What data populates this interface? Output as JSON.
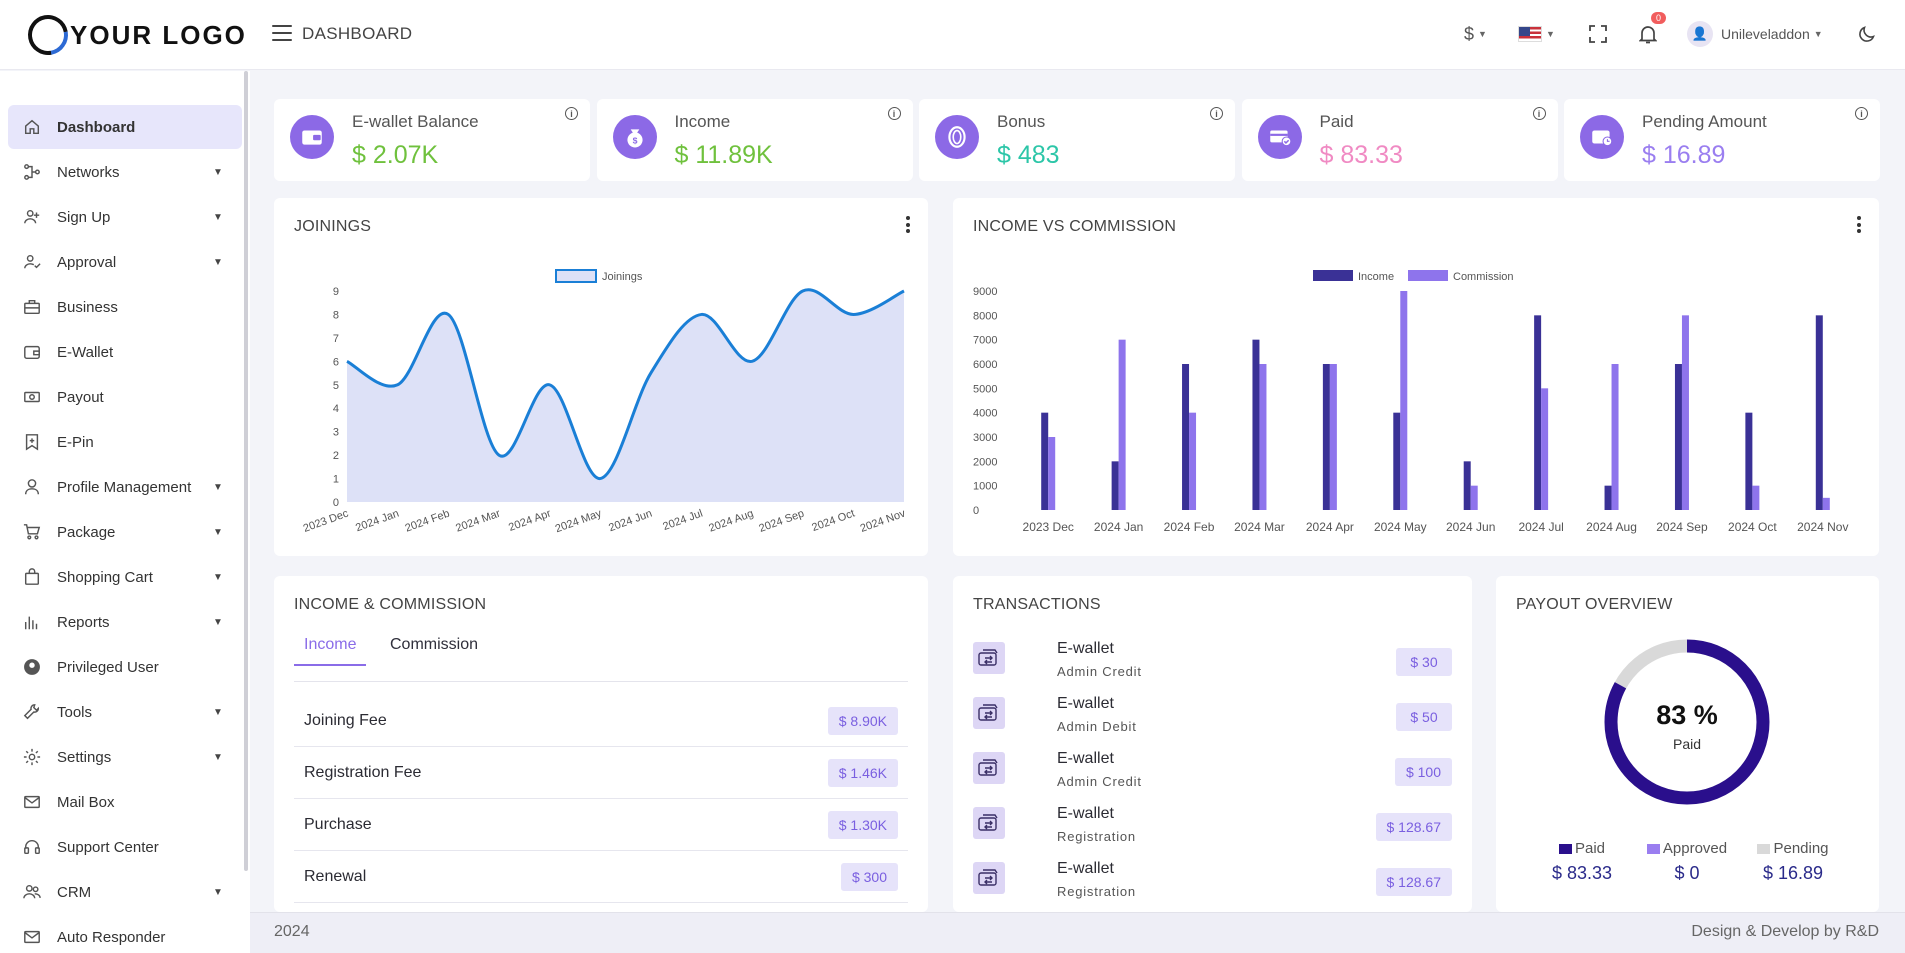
{
  "header": {
    "logo_text": "YOUR LOGO",
    "page_title": "DASHBOARD",
    "currency_symbol": "$",
    "notification_count": "0",
    "username": "Unileveladdon"
  },
  "sidebar": {
    "items": [
      {
        "label": "Dashboard",
        "icon": "home-icon",
        "active": true,
        "expandable": false
      },
      {
        "label": "Networks",
        "icon": "network-icon",
        "expandable": true
      },
      {
        "label": "Sign Up",
        "icon": "user-plus-icon",
        "expandable": true
      },
      {
        "label": "Approval",
        "icon": "user-check-icon",
        "expandable": true
      },
      {
        "label": "Business",
        "icon": "briefcase-icon",
        "expandable": false
      },
      {
        "label": "E-Wallet",
        "icon": "wallet-icon",
        "expandable": false
      },
      {
        "label": "Payout",
        "icon": "cash-icon",
        "expandable": false
      },
      {
        "label": "E-Pin",
        "icon": "bookmark-icon",
        "expandable": false
      },
      {
        "label": "Profile Management",
        "icon": "user-icon",
        "expandable": true
      },
      {
        "label": "Package",
        "icon": "cart-icon",
        "expandable": true
      },
      {
        "label": "Shopping Cart",
        "icon": "bag-icon",
        "expandable": true
      },
      {
        "label": "Reports",
        "icon": "bar-chart-icon",
        "expandable": true
      },
      {
        "label": "Privileged User",
        "icon": "user-circle-icon",
        "expandable": false
      },
      {
        "label": "Tools",
        "icon": "wrench-icon",
        "expandable": true
      },
      {
        "label": "Settings",
        "icon": "gear-icon",
        "expandable": true
      },
      {
        "label": "Mail Box",
        "icon": "mail-icon",
        "expandable": false
      },
      {
        "label": "Support Center",
        "icon": "headset-icon",
        "expandable": false
      },
      {
        "label": "CRM",
        "icon": "users-icon",
        "expandable": true
      },
      {
        "label": "Auto Responder",
        "icon": "mail-icon",
        "expandable": false
      }
    ]
  },
  "stats": [
    {
      "title": "E-wallet Balance",
      "value": "$ 2.07K",
      "color": "#6fc13d",
      "icon": "wallet-icon"
    },
    {
      "title": "Income",
      "value": "$ 11.89K",
      "color": "#6fc13d",
      "icon": "money-bag-icon"
    },
    {
      "title": "Bonus",
      "value": "$ 483",
      "color": "#2cc6a8",
      "icon": "coin-icon"
    },
    {
      "title": "Paid",
      "value": "$ 83.33",
      "color": "#f08ac3",
      "icon": "card-check-icon"
    },
    {
      "title": "Pending Amount",
      "value": "$ 16.89",
      "color": "#9a7ef0",
      "icon": "wallet-clock-icon"
    }
  ],
  "joinings": {
    "title": "JOININGS"
  },
  "income_vs_commission": {
    "title": "INCOME VS COMMISSION"
  },
  "chart_data": [
    {
      "type": "area",
      "legend": [
        "Joinings"
      ],
      "categories": [
        "2023 Dec",
        "2024 Jan",
        "2024 Feb",
        "2024 Mar",
        "2024 Apr",
        "2024 May",
        "2024 Jun",
        "2024 Jul",
        "2024 Aug",
        "2024 Sep",
        "2024 Oct",
        "2024 Nov"
      ],
      "series": [
        {
          "name": "Joinings",
          "values": [
            6,
            5,
            8,
            2,
            5,
            1,
            5.5,
            8,
            6,
            9,
            8,
            9
          ]
        }
      ],
      "yticks": [
        "0",
        "1",
        "2",
        "3",
        "4",
        "5",
        "6",
        "7",
        "8",
        "9"
      ],
      "ylim": [
        0,
        9
      ],
      "colors": {
        "line": "#1a7fd6",
        "fill": "#dde1f7"
      }
    },
    {
      "type": "bar",
      "legend": [
        "Income",
        "Commission"
      ],
      "categories": [
        "2023 Dec",
        "2024 Jan",
        "2024 Feb",
        "2024 Mar",
        "2024 Apr",
        "2024 May",
        "2024 Jun",
        "2024 Jul",
        "2024 Aug",
        "2024 Sep",
        "2024 Oct",
        "2024 Nov"
      ],
      "series": [
        {
          "name": "Income",
          "values": [
            4000,
            2000,
            6000,
            7000,
            6000,
            4000,
            2000,
            8000,
            1000,
            6000,
            4000,
            8000
          ]
        },
        {
          "name": "Commission",
          "values": [
            3000,
            7000,
            4000,
            6000,
            6000,
            9000,
            1000,
            5000,
            6000,
            8000,
            1000,
            500
          ]
        }
      ],
      "yticks": [
        "0",
        "1000",
        "2000",
        "3000",
        "4000",
        "5000",
        "6000",
        "7000",
        "8000",
        "9000"
      ],
      "ylim": [
        0,
        9000
      ],
      "colors": {
        "Income": "#3a3196",
        "Commission": "#8e74ec"
      }
    }
  ],
  "income_commission": {
    "title": "INCOME & COMMISSION",
    "tabs": [
      "Income",
      "Commission"
    ],
    "rows": [
      {
        "label": "Joining Fee",
        "amount": "$ 8.90K"
      },
      {
        "label": "Registration Fee",
        "amount": "$ 1.46K"
      },
      {
        "label": "Purchase",
        "amount": "$ 1.30K"
      },
      {
        "label": "Renewal",
        "amount": "$ 300"
      }
    ]
  },
  "transactions": {
    "title": "TRANSACTIONS",
    "rows": [
      {
        "name": "E-wallet",
        "sub": "Admin Credit",
        "amount": "$ 30"
      },
      {
        "name": "E-wallet",
        "sub": "Admin Debit",
        "amount": "$ 50"
      },
      {
        "name": "E-wallet",
        "sub": "Admin Credit",
        "amount": "$ 100"
      },
      {
        "name": "E-wallet",
        "sub": "Registration",
        "amount": "$ 128.67"
      },
      {
        "name": "E-wallet",
        "sub": "Registration",
        "amount": "$ 128.67"
      }
    ]
  },
  "payout_overview": {
    "title": "PAYOUT OVERVIEW",
    "percent_text": "83 %",
    "center_label": "Paid",
    "paid_fraction": 0.83,
    "legend": [
      {
        "label": "Paid",
        "value": "$ 83.33",
        "color": "#2a0f8c"
      },
      {
        "label": "Approved",
        "value": "$ 0",
        "color": "#9a7ef0"
      },
      {
        "label": "Pending",
        "value": "$ 16.89",
        "color": "#d9d9d9"
      }
    ]
  },
  "footer": {
    "year": "2024",
    "credit": "Design & Develop by R&D"
  }
}
